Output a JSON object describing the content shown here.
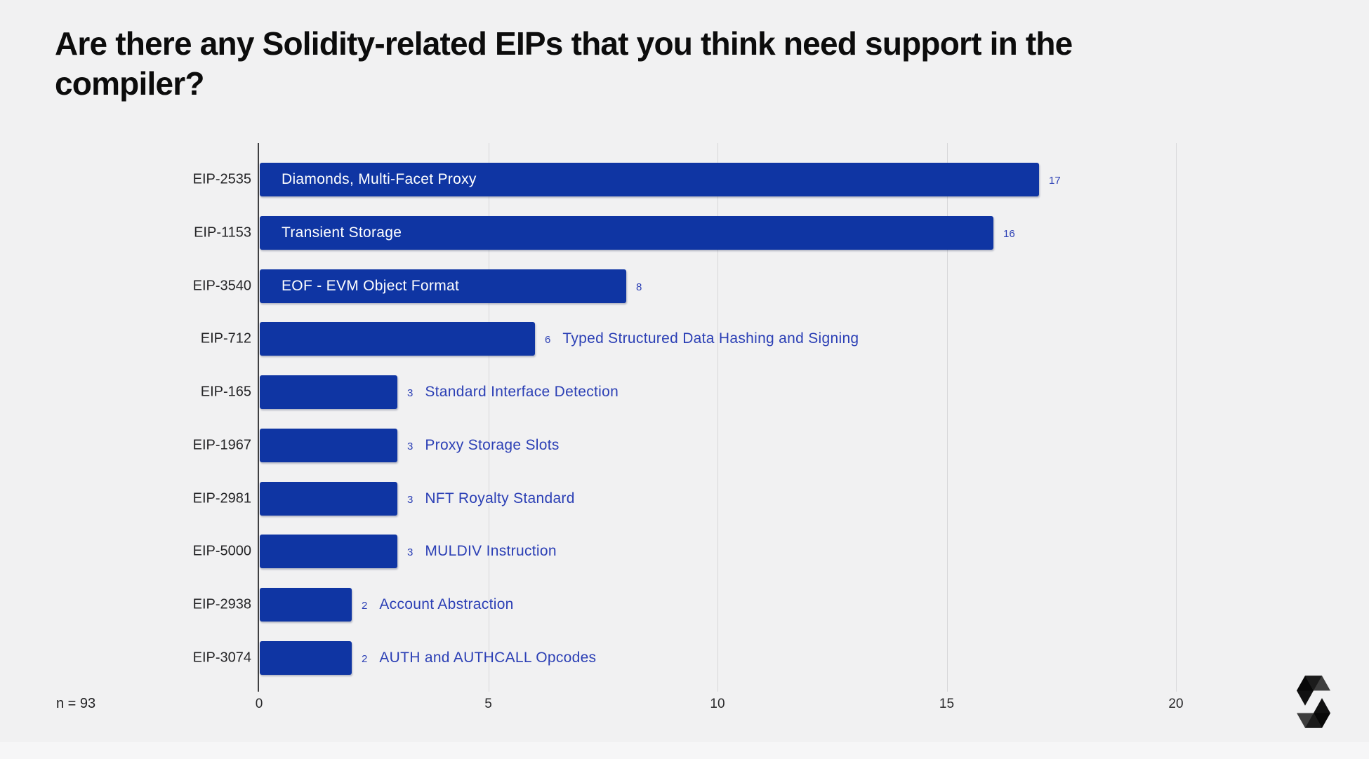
{
  "header": {
    "title_lines": [
      "Are there any Solidity-related EIPs that you think need support in the",
      "compiler?"
    ]
  },
  "footer": {
    "sample_size": "n = 93",
    "logo": "solidity-logo"
  },
  "colors": {
    "background": "#f1f1f2",
    "bar": "#0f35a3",
    "annotation": "#2b3fb5",
    "axis": "#3f3f41",
    "gridline": "#d7d7d9",
    "text": "#1d1d1f",
    "bar_label": "#ffffff"
  },
  "chart_data": {
    "type": "bar",
    "orientation": "horizontal",
    "title": "Are there any Solidity-related EIPs that you think need support in the compiler?",
    "xlabel": "",
    "ylabel": "",
    "xlim": [
      0,
      21
    ],
    "x_ticks": [
      0,
      5,
      10,
      15,
      20
    ],
    "grid": "vertical",
    "legend": "none",
    "items": [
      {
        "id": "EIP-2535",
        "label": "Diamonds, Multi-Facet Proxy",
        "value": 17,
        "label_placement": "inside"
      },
      {
        "id": "EIP-1153",
        "label": "Transient Storage",
        "value": 16,
        "label_placement": "inside"
      },
      {
        "id": "EIP-3540",
        "label": "EOF - EVM Object Format",
        "value": 8,
        "label_placement": "inside"
      },
      {
        "id": "EIP-712",
        "label": "Typed Structured Data Hashing and Signing",
        "value": 6,
        "label_placement": "outside"
      },
      {
        "id": "EIP-165",
        "label": "Standard Interface Detection",
        "value": 3,
        "label_placement": "outside"
      },
      {
        "id": "EIP-1967",
        "label": "Proxy Storage Slots",
        "value": 3,
        "label_placement": "outside"
      },
      {
        "id": "EIP-2981",
        "label": "NFT Royalty Standard",
        "value": 3,
        "label_placement": "outside"
      },
      {
        "id": "EIP-5000",
        "label": "MULDIV Instruction",
        "value": 3,
        "label_placement": "outside"
      },
      {
        "id": "EIP-2938",
        "label": "Account Abstraction",
        "value": 2,
        "label_placement": "outside"
      },
      {
        "id": "EIP-3074",
        "label": "AUTH and AUTHCALL Opcodes",
        "value": 2,
        "label_placement": "outside"
      }
    ]
  }
}
